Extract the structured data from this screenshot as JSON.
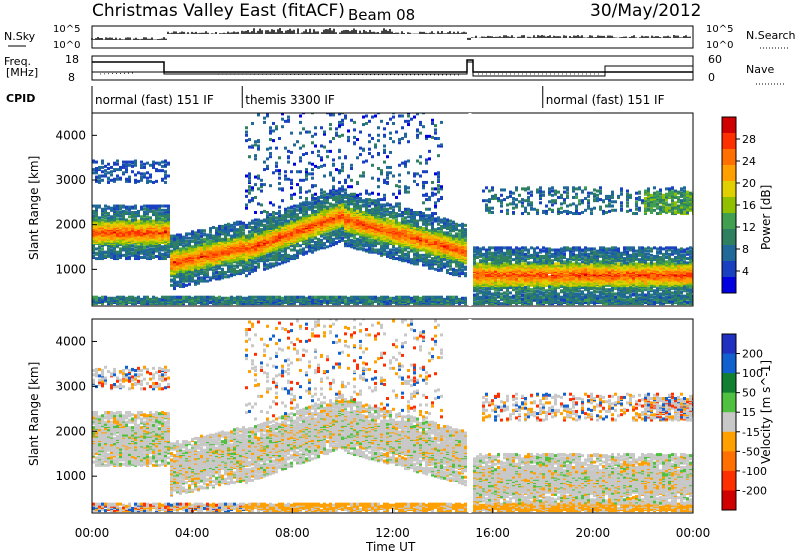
{
  "header": {
    "station": "Christmas Valley East (fitACF)",
    "beam": "Beam 08",
    "date": "30/May/2012"
  },
  "top_panels": {
    "nsky_label": "N.Sky",
    "nsky_ticks": [
      "10^5",
      "10^0"
    ],
    "nsearch_label": "N.Search",
    "nsearch_ticks": [
      "10^5",
      "10^0"
    ],
    "freq_label": [
      "Freq.",
      "[MHz]"
    ],
    "freq_ticks": [
      "18",
      "8"
    ],
    "nave_label": "Nave",
    "nave_ticks": [
      "60",
      "0"
    ],
    "cpid_label": "CPID",
    "cpid_modes": [
      {
        "text": "normal (fast) 151 IF",
        "start_h": 0,
        "end_h": 6
      },
      {
        "text": "themis 3300 IF",
        "start_h": 6,
        "end_h": 18
      },
      {
        "text": "normal (fast) 151 IF",
        "start_h": 18,
        "end_h": 24
      }
    ]
  },
  "chart_data": [
    {
      "type": "heatmap",
      "panel": "power",
      "ylabel": "Slant Range [km]",
      "ylim": [
        180,
        4500
      ],
      "yticks": [
        "1000",
        "2000",
        "3000",
        "4000"
      ],
      "colorbar_label": "Power [dB]",
      "colorbar_ticks": [
        "28",
        "24",
        "20",
        "16",
        "12",
        "8",
        "4"
      ],
      "colorbar_colors": [
        "#d00000",
        "#ff3000",
        "#ff7000",
        "#ffa000",
        "#e0d000",
        "#90c000",
        "#40a050",
        "#2e8060",
        "#206898",
        "#1840c0",
        "#0000e0"
      ],
      "features": [
        {
          "t_start": 0.0,
          "t_end": 3.0,
          "range_center": 1800,
          "value": 26
        },
        {
          "t_start": 3.0,
          "t_end": 6.0,
          "range_center": 1150,
          "value": 26
        },
        {
          "t_start": 6.0,
          "t_end": 9.5,
          "range_center": 1900,
          "value": 22
        },
        {
          "t_start": 15.0,
          "t_end": 24.0,
          "range_center": 800,
          "value": 24
        }
      ]
    },
    {
      "type": "heatmap",
      "panel": "velocity",
      "xlabel": "Time UT",
      "xticks": [
        "00:00",
        "04:00",
        "08:00",
        "12:00",
        "16:00",
        "20:00",
        "00:00"
      ],
      "ylabel": "Slant Range [km]",
      "ylim": [
        180,
        4500
      ],
      "yticks": [
        "1000",
        "2000",
        "3000",
        "4000"
      ],
      "colorbar_label": "Velocity [m s^-1]",
      "colorbar_ticks": [
        "200",
        "100",
        "50",
        "15",
        "-15",
        "-50",
        "-100",
        "-200"
      ],
      "colorbar_colors": [
        "#2030c0",
        "#1060d0",
        "#108030",
        "#50c040",
        "#c8c8c8",
        "#ffa000",
        "#ff7000",
        "#ff3000",
        "#d00000"
      ]
    }
  ]
}
